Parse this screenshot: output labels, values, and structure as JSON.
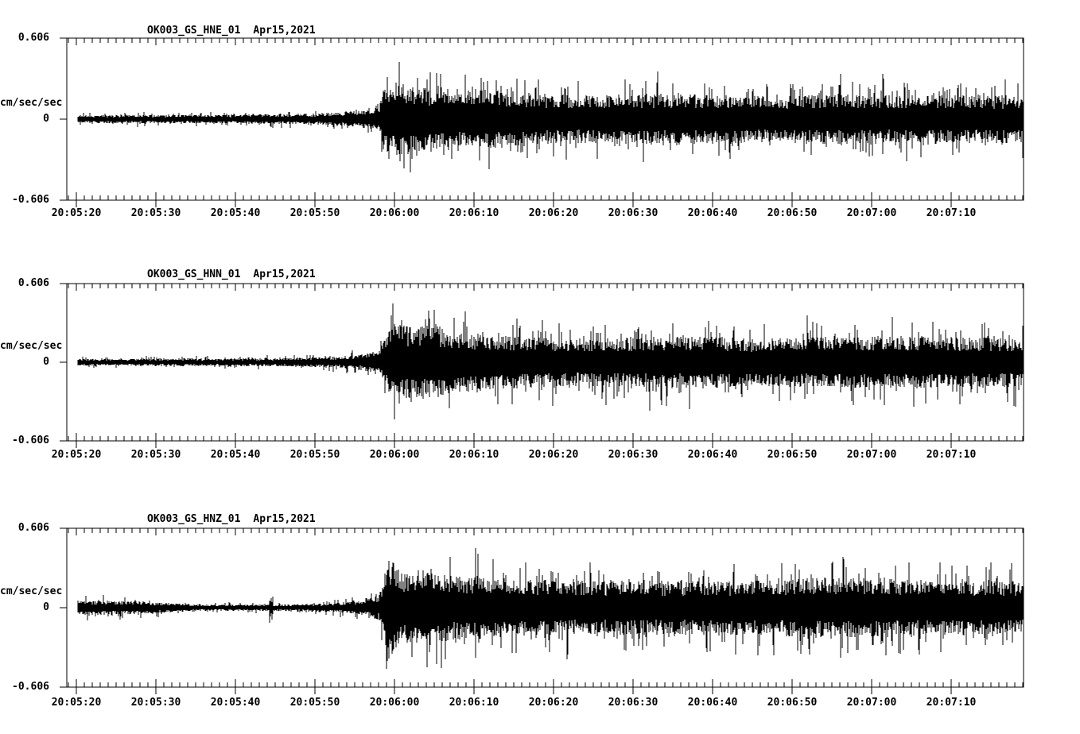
{
  "meta": {
    "background_color": "#ffffff",
    "trace_color": "#000000",
    "description": "Three-component strong-motion seismogram record display"
  },
  "chart_data": [
    {
      "type": "seismogram",
      "title": {
        "station": "OK003_GS_HNE_01",
        "date": "Apr15,2021"
      },
      "y_axis": {
        "unit": "cm/sec/sec",
        "top_label": "0.606",
        "zero_label": "0",
        "bottom_label": "-0.606",
        "ylim": [
          -0.606,
          0.606
        ]
      },
      "x_axis": {
        "tick_labels": [
          "20:05:20",
          "20:05:30",
          "20:05:40",
          "20:05:50",
          "20:06:00",
          "20:06:10",
          "20:06:20",
          "20:06:30",
          "20:06:40",
          "20:06:50",
          "20:07:00",
          "20:07:10"
        ],
        "major_tick_interval_sec": 10,
        "minor_tick_interval_sec": 1
      },
      "waveform": {
        "seed": 1337,
        "envelope": [
          [
            0,
            0.045
          ],
          [
            20,
            0.048
          ],
          [
            28,
            0.058
          ],
          [
            33,
            0.075
          ],
          [
            36,
            0.1
          ],
          [
            38,
            0.14
          ],
          [
            38.6,
            0.34
          ],
          [
            40,
            0.42
          ],
          [
            43,
            0.36
          ],
          [
            47,
            0.3
          ],
          [
            52,
            0.33
          ],
          [
            58,
            0.28
          ],
          [
            65,
            0.26
          ],
          [
            72,
            0.28
          ],
          [
            80,
            0.27
          ],
          [
            88,
            0.25
          ],
          [
            95,
            0.28
          ],
          [
            102,
            0.26
          ],
          [
            110,
            0.27
          ],
          [
            118.9,
            0.26
          ]
        ],
        "spikes": []
      }
    },
    {
      "type": "seismogram",
      "title": {
        "station": "OK003_GS_HNN_01",
        "date": "Apr15,2021"
      },
      "y_axis": {
        "unit": "cm/sec/sec",
        "top_label": "0.606",
        "zero_label": "0",
        "bottom_label": "-0.606",
        "ylim": [
          -0.606,
          0.606
        ]
      },
      "x_axis": {
        "tick_labels": [
          "20:05:20",
          "20:05:30",
          "20:05:40",
          "20:05:50",
          "20:06:00",
          "20:06:10",
          "20:06:20",
          "20:06:30",
          "20:06:40",
          "20:06:50",
          "20:07:00",
          "20:07:10"
        ],
        "major_tick_interval_sec": 10,
        "minor_tick_interval_sec": 1
      },
      "waveform": {
        "seed": 4242,
        "envelope": [
          [
            0,
            0.04
          ],
          [
            20,
            0.043
          ],
          [
            28,
            0.05
          ],
          [
            33,
            0.065
          ],
          [
            36,
            0.088
          ],
          [
            38,
            0.13
          ],
          [
            39,
            0.3
          ],
          [
            40,
            0.45
          ],
          [
            42,
            0.4
          ],
          [
            44,
            0.43
          ],
          [
            48,
            0.34
          ],
          [
            55,
            0.3
          ],
          [
            62,
            0.27
          ],
          [
            70,
            0.28
          ],
          [
            78,
            0.3
          ],
          [
            85,
            0.27
          ],
          [
            92,
            0.28
          ],
          [
            100,
            0.3
          ],
          [
            108,
            0.29
          ],
          [
            118.9,
            0.28
          ]
        ],
        "spikes": []
      }
    },
    {
      "type": "seismogram",
      "title": {
        "station": "OK003_GS_HNZ_01",
        "date": "Apr15,2021"
      },
      "y_axis": {
        "unit": "cm/sec/sec",
        "top_label": "0.606",
        "zero_label": "0",
        "bottom_label": "-0.606",
        "ylim": [
          -0.606,
          0.606
        ]
      },
      "x_axis": {
        "tick_labels": [
          "20:05:20",
          "20:05:30",
          "20:05:40",
          "20:05:50",
          "20:06:00",
          "20:06:10",
          "20:06:20",
          "20:06:30",
          "20:06:40",
          "20:06:50",
          "20:07:00",
          "20:07:10"
        ],
        "major_tick_interval_sec": 10,
        "minor_tick_interval_sec": 1
      },
      "waveform": {
        "seed": 9001,
        "envelope": [
          [
            0,
            0.085
          ],
          [
            7,
            0.075
          ],
          [
            11,
            0.055
          ],
          [
            15,
            0.036
          ],
          [
            24,
            0.036
          ],
          [
            30,
            0.046
          ],
          [
            34,
            0.06
          ],
          [
            36.5,
            0.09
          ],
          [
            38,
            0.14
          ],
          [
            39.4,
            0.57
          ],
          [
            41,
            0.38
          ],
          [
            43.5,
            0.45
          ],
          [
            46,
            0.38
          ],
          [
            50,
            0.35
          ],
          [
            56,
            0.32
          ],
          [
            64,
            0.3
          ],
          [
            72,
            0.31
          ],
          [
            80,
            0.3
          ],
          [
            88,
            0.32
          ],
          [
            96,
            0.34
          ],
          [
            104,
            0.32
          ],
          [
            112,
            0.3
          ],
          [
            118.9,
            0.3
          ]
        ],
        "spikes": [
          [
            24.5,
            0.13
          ]
        ]
      }
    }
  ]
}
